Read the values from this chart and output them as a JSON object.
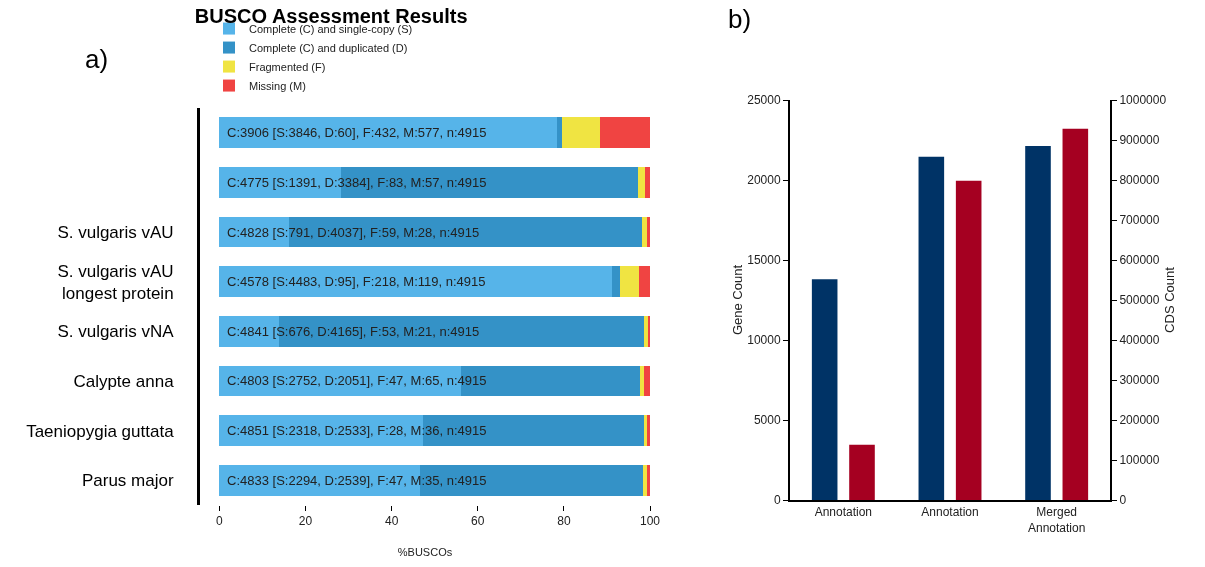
{
  "chart_data": [
    {
      "type": "bar",
      "title": "BUSCO Assessment Results",
      "xlabel": "%BUSCOs",
      "orientation": "horizontal",
      "stacked": true,
      "categories": [
        null,
        null,
        "S. vulgaris vAU",
        "S. vulgaris vAU\nlongest protein",
        "S. vulgaris vNA",
        "Calypte anna",
        "Taeniopygia guttata",
        "Parus major"
      ],
      "series": [
        {
          "name": "Complete (C) and single-copy (S)",
          "color": "#56b4e9",
          "values": [
            78.3,
            28.3,
            16.1,
            91.2,
            13.8,
            56.0,
            47.2,
            46.7
          ],
          "value_labels": [
            "C:3906 [S:3846, D:60], F:432, M:577, n:4915",
            "C:4775 [S:1391, D:3384], F:83, M:57, n:4915",
            "C:4828 [S:791, D:4037], F:59, M:28, n:4915",
            "C:4578 [S:4483, D:95], F:218, M:119, n:4915",
            "C:4841 [S:676, D:4165], F:53, M:21, n:4915",
            "C:4803 [S:2752, D:2051], F:47, M:65, n:4915",
            "C:4851 [S:2318, D:2533], F:28, M:36, n:4915",
            "C:4833 [S:2294, D:2539], F:47, M:35, n:4915"
          ]
        },
        {
          "name": "Complete (C) and duplicated (D)",
          "color": "#3492c7",
          "values": [
            1.2,
            68.8,
            82.1,
            1.9,
            84.7,
            41.7,
            51.5,
            51.7
          ]
        },
        {
          "name": "Fragmented (F)",
          "color": "#f0e442",
          "values": [
            8.8,
            1.7,
            1.2,
            4.4,
            1.1,
            1.0,
            0.6,
            1.0
          ]
        },
        {
          "name": "Missing (M)",
          "color": "#f04442",
          "values": [
            11.7,
            1.2,
            0.6,
            2.4,
            0.4,
            1.3,
            0.7,
            0.7
          ]
        }
      ],
      "xlim": [
        -4.5,
        100
      ],
      "xticks": [
        0,
        20,
        40,
        60,
        80,
        100
      ],
      "grid": false,
      "legend": "top",
      "annotations": [
        "a)"
      ]
    },
    {
      "type": "bar",
      "ylabel": "Gene Count",
      "y2label": "CDS Count",
      "categories": [
        "Annotation",
        "Annotation",
        "Merged\nAnnotation"
      ],
      "series": [
        {
          "color": "#003366",
          "values": [
            13800,
            21450,
            22130
          ]
        },
        {
          "color": "#a50021",
          "values": [
            138000,
            798000,
            928000
          ],
          "axis": "y2"
        }
      ],
      "ylim": [
        0,
        25000
      ],
      "yticks": [
        0,
        5000,
        10000,
        15000,
        20000,
        25000
      ],
      "y2lim": [
        0,
        1000000
      ],
      "y2ticks": [
        0,
        100000,
        200000,
        300000,
        400000,
        500000,
        600000,
        700000,
        800000,
        900000,
        1000000
      ],
      "grid": false,
      "legend": false,
      "annotations": [
        "b)"
      ]
    }
  ]
}
